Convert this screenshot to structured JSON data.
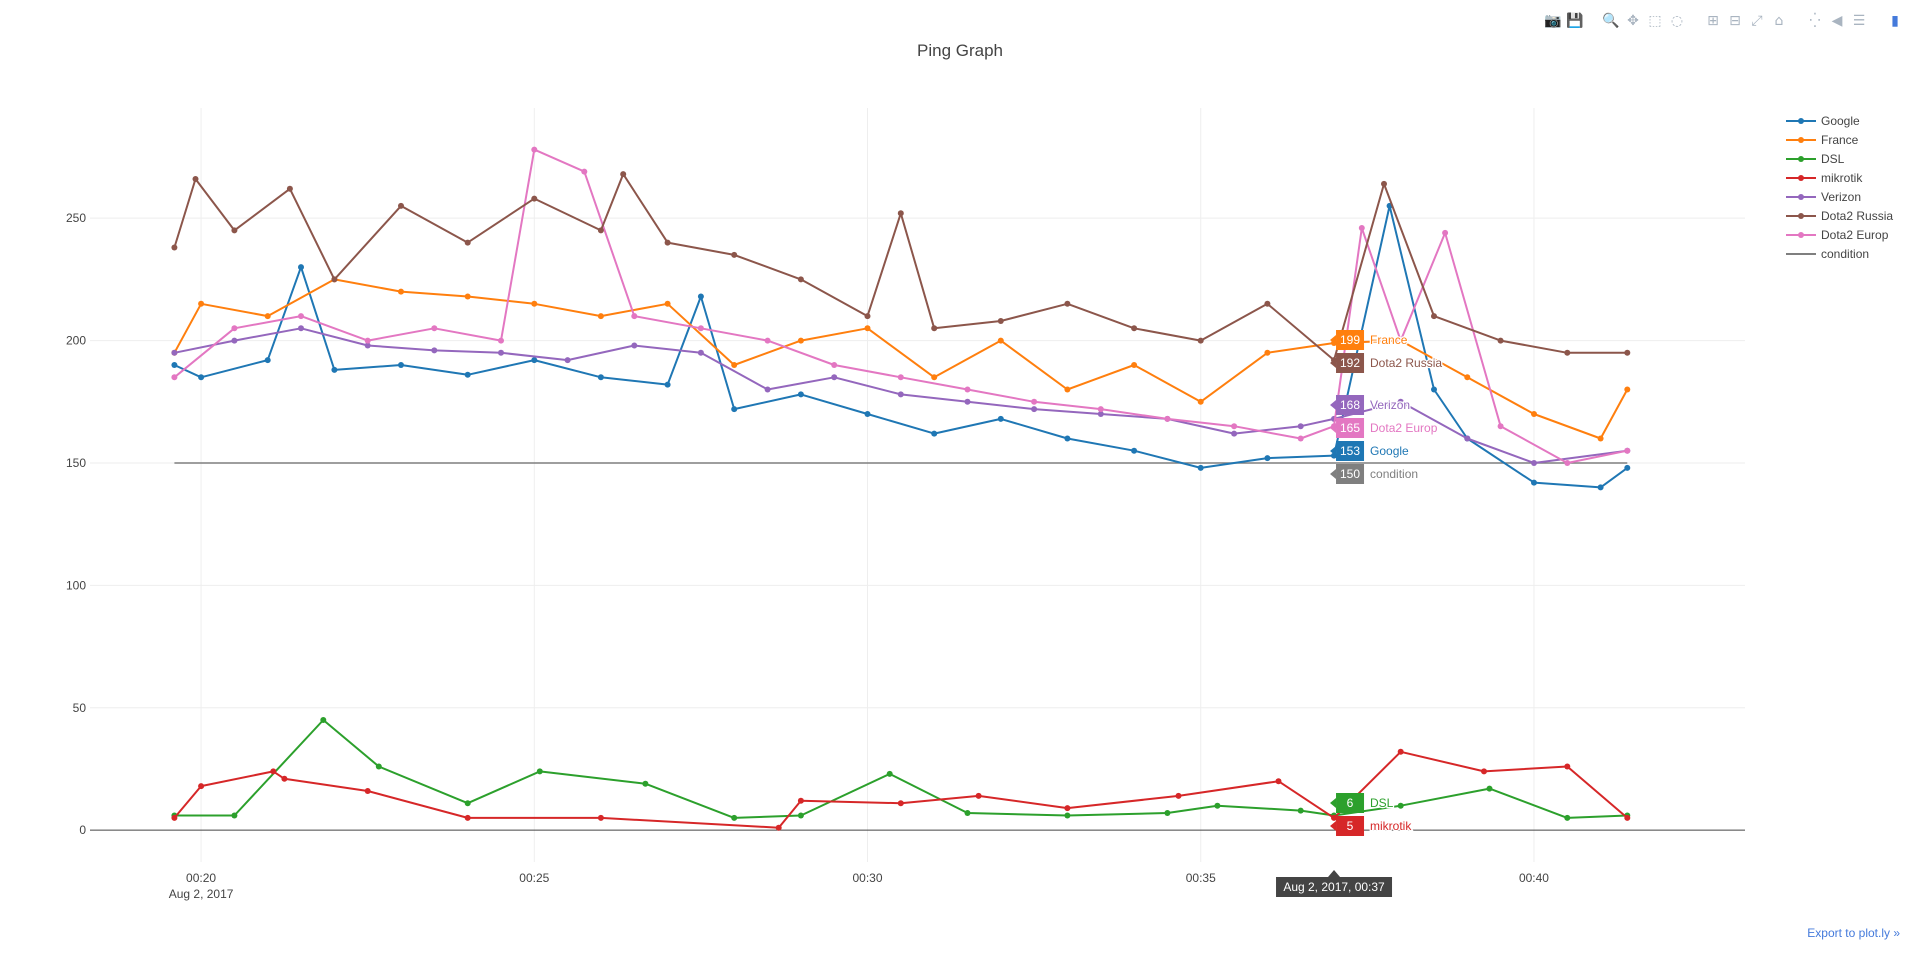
{
  "modebar": {
    "groups": [
      [
        {
          "name": "camera-icon",
          "glyph": "📷"
        },
        {
          "name": "save-icon",
          "glyph": "💾"
        }
      ],
      [
        {
          "name": "zoom-icon",
          "glyph": "🔍",
          "active": true
        },
        {
          "name": "pan-icon",
          "glyph": "✥"
        },
        {
          "name": "box-select-icon",
          "glyph": "⬚"
        },
        {
          "name": "lasso-select-icon",
          "glyph": "◌"
        }
      ],
      [
        {
          "name": "zoom-in-icon",
          "glyph": "⊞"
        },
        {
          "name": "zoom-out-icon",
          "glyph": "⊟"
        },
        {
          "name": "autoscale-icon",
          "glyph": "⤢"
        },
        {
          "name": "reset-axes-icon",
          "glyph": "⌂"
        }
      ],
      [
        {
          "name": "spike-lines-icon",
          "glyph": "⁛"
        },
        {
          "name": "hover-closest-icon",
          "glyph": "◀"
        },
        {
          "name": "hover-compare-icon",
          "glyph": "☰"
        }
      ],
      [
        {
          "name": "plotly-logo-icon",
          "glyph": "▮",
          "logo": true
        }
      ]
    ]
  },
  "export_link": "Export to plot.ly »",
  "chart_data": {
    "type": "line",
    "title": "Ping Graph",
    "xlabel": "",
    "ylabel": "",
    "x_range": [
      "2017-08-02T00:18:20",
      "2017-08-02T00:43:10"
    ],
    "x_ticks": [
      {
        "value": "2017-08-02T00:20",
        "label": "00:20",
        "sublabel": "Aug 2, 2017"
      },
      {
        "value": "2017-08-02T00:25",
        "label": "00:25"
      },
      {
        "value": "2017-08-02T00:30",
        "label": "00:30"
      },
      {
        "value": "2017-08-02T00:35",
        "label": "00:35"
      },
      {
        "value": "2017-08-02T00:40",
        "label": "00:40"
      }
    ],
    "ylim": [
      -13,
      295
    ],
    "y_ticks": [
      0,
      50,
      100,
      150,
      200,
      250
    ],
    "grid": true,
    "legend_position": "top-right",
    "series": [
      {
        "name": "Google",
        "color": "#1f77b4",
        "markers": true,
        "x": [
          "2017-08-02T00:19:36",
          "2017-08-02T00:20:00",
          "2017-08-02T00:21:00",
          "2017-08-02T00:21:30",
          "2017-08-02T00:22:00",
          "2017-08-02T00:23:00",
          "2017-08-02T00:24:00",
          "2017-08-02T00:25:00",
          "2017-08-02T00:26:00",
          "2017-08-02T00:27:00",
          "2017-08-02T00:27:30",
          "2017-08-02T00:28:00",
          "2017-08-02T00:29:00",
          "2017-08-02T00:30:00",
          "2017-08-02T00:31:00",
          "2017-08-02T00:32:00",
          "2017-08-02T00:33:00",
          "2017-08-02T00:34:00",
          "2017-08-02T00:35:00",
          "2017-08-02T00:36:00",
          "2017-08-02T00:37:00",
          "2017-08-02T00:37:50",
          "2017-08-02T00:38:30",
          "2017-08-02T00:39:00",
          "2017-08-02T00:40:00",
          "2017-08-02T00:41:00",
          "2017-08-02T00:41:24"
        ],
        "y": [
          190,
          185,
          192,
          230,
          188,
          190,
          186,
          192,
          185,
          182,
          218,
          172,
          178,
          170,
          162,
          168,
          160,
          155,
          148,
          152,
          153,
          255,
          180,
          160,
          142,
          140,
          148
        ]
      },
      {
        "name": "France",
        "color": "#ff7f0e",
        "markers": true,
        "x": [
          "2017-08-02T00:19:36",
          "2017-08-02T00:20:00",
          "2017-08-02T00:21:00",
          "2017-08-02T00:22:00",
          "2017-08-02T00:23:00",
          "2017-08-02T00:24:00",
          "2017-08-02T00:25:00",
          "2017-08-02T00:26:00",
          "2017-08-02T00:27:00",
          "2017-08-02T00:28:00",
          "2017-08-02T00:29:00",
          "2017-08-02T00:30:00",
          "2017-08-02T00:31:00",
          "2017-08-02T00:32:00",
          "2017-08-02T00:33:00",
          "2017-08-02T00:34:00",
          "2017-08-02T00:35:00",
          "2017-08-02T00:36:00",
          "2017-08-02T00:37:00",
          "2017-08-02T00:38:00",
          "2017-08-02T00:39:00",
          "2017-08-02T00:40:00",
          "2017-08-02T00:41:00",
          "2017-08-02T00:41:24"
        ],
        "y": [
          195,
          215,
          210,
          225,
          220,
          218,
          215,
          210,
          215,
          190,
          200,
          205,
          185,
          200,
          180,
          190,
          175,
          195,
          199,
          200,
          185,
          170,
          160,
          180
        ]
      },
      {
        "name": "DSL",
        "color": "#2ca02c",
        "markers": true,
        "x": [
          "2017-08-02T00:19:36",
          "2017-08-02T00:20:30",
          "2017-08-02T00:21:50",
          "2017-08-02T00:22:40",
          "2017-08-02T00:24:00",
          "2017-08-02T00:25:05",
          "2017-08-02T00:26:40",
          "2017-08-02T00:28:00",
          "2017-08-02T00:29:00",
          "2017-08-02T00:30:20",
          "2017-08-02T00:31:30",
          "2017-08-02T00:33:00",
          "2017-08-02T00:34:30",
          "2017-08-02T00:35:15",
          "2017-08-02T00:36:30",
          "2017-08-02T00:37:00",
          "2017-08-02T00:38:00",
          "2017-08-02T00:39:20",
          "2017-08-02T00:40:30",
          "2017-08-02T00:41:24"
        ],
        "y": [
          6,
          6,
          45,
          26,
          11,
          24,
          19,
          5,
          6,
          23,
          7,
          6,
          7,
          10,
          8,
          6,
          10,
          17,
          5,
          6
        ]
      },
      {
        "name": "mikrotik",
        "color": "#d62728",
        "markers": true,
        "x": [
          "2017-08-02T00:19:36",
          "2017-08-02T00:20:00",
          "2017-08-02T00:21:05",
          "2017-08-02T00:21:15",
          "2017-08-02T00:22:30",
          "2017-08-02T00:24:00",
          "2017-08-02T00:26:00",
          "2017-08-02T00:28:40",
          "2017-08-02T00:29:00",
          "2017-08-02T00:30:30",
          "2017-08-02T00:31:40",
          "2017-08-02T00:33:00",
          "2017-08-02T00:34:40",
          "2017-08-02T00:36:10",
          "2017-08-02T00:37:00",
          "2017-08-02T00:38:00",
          "2017-08-02T00:39:15",
          "2017-08-02T00:40:30",
          "2017-08-02T00:41:24"
        ],
        "y": [
          5,
          18,
          24,
          21,
          16,
          5,
          5,
          1,
          12,
          11,
          14,
          9,
          14,
          20,
          5,
          32,
          24,
          26,
          5
        ]
      },
      {
        "name": "Verizon",
        "color": "#9467bd",
        "markers": true,
        "x": [
          "2017-08-02T00:19:36",
          "2017-08-02T00:20:30",
          "2017-08-02T00:21:30",
          "2017-08-02T00:22:30",
          "2017-08-02T00:23:30",
          "2017-08-02T00:24:30",
          "2017-08-02T00:25:30",
          "2017-08-02T00:26:30",
          "2017-08-02T00:27:30",
          "2017-08-02T00:28:30",
          "2017-08-02T00:29:30",
          "2017-08-02T00:30:30",
          "2017-08-02T00:31:30",
          "2017-08-02T00:32:30",
          "2017-08-02T00:33:30",
          "2017-08-02T00:34:30",
          "2017-08-02T00:35:30",
          "2017-08-02T00:36:30",
          "2017-08-02T00:37:00",
          "2017-08-02T00:38:00",
          "2017-08-02T00:39:00",
          "2017-08-02T00:40:00",
          "2017-08-02T00:41:24"
        ],
        "y": [
          195,
          200,
          205,
          198,
          196,
          195,
          192,
          198,
          195,
          180,
          185,
          178,
          175,
          172,
          170,
          168,
          162,
          165,
          168,
          175,
          160,
          150,
          155
        ]
      },
      {
        "name": "Dota2 Russia",
        "color": "#8c564b",
        "markers": true,
        "x": [
          "2017-08-02T00:19:36",
          "2017-08-02T00:19:55",
          "2017-08-02T00:20:30",
          "2017-08-02T00:21:20",
          "2017-08-02T00:22:00",
          "2017-08-02T00:23:00",
          "2017-08-02T00:24:00",
          "2017-08-02T00:25:00",
          "2017-08-02T00:26:00",
          "2017-08-02T00:26:20",
          "2017-08-02T00:27:00",
          "2017-08-02T00:28:00",
          "2017-08-02T00:29:00",
          "2017-08-02T00:30:00",
          "2017-08-02T00:30:30",
          "2017-08-02T00:31:00",
          "2017-08-02T00:32:00",
          "2017-08-02T00:33:00",
          "2017-08-02T00:34:00",
          "2017-08-02T00:35:00",
          "2017-08-02T00:36:00",
          "2017-08-02T00:37:00",
          "2017-08-02T00:37:45",
          "2017-08-02T00:38:30",
          "2017-08-02T00:39:30",
          "2017-08-02T00:40:30",
          "2017-08-02T00:41:24"
        ],
        "y": [
          238,
          266,
          245,
          262,
          225,
          255,
          240,
          258,
          245,
          268,
          240,
          235,
          225,
          210,
          252,
          205,
          208,
          215,
          205,
          200,
          215,
          192,
          264,
          210,
          200,
          195,
          195
        ]
      },
      {
        "name": "Dota2 Europ",
        "color": "#e377c2",
        "markers": true,
        "x": [
          "2017-08-02T00:19:36",
          "2017-08-02T00:20:30",
          "2017-08-02T00:21:30",
          "2017-08-02T00:22:30",
          "2017-08-02T00:23:30",
          "2017-08-02T00:24:30",
          "2017-08-02T00:25:00",
          "2017-08-02T00:25:45",
          "2017-08-02T00:26:30",
          "2017-08-02T00:27:30",
          "2017-08-02T00:28:30",
          "2017-08-02T00:29:30",
          "2017-08-02T00:30:30",
          "2017-08-02T00:31:30",
          "2017-08-02T00:32:30",
          "2017-08-02T00:33:30",
          "2017-08-02T00:34:30",
          "2017-08-02T00:35:30",
          "2017-08-02T00:36:30",
          "2017-08-02T00:37:00",
          "2017-08-02T00:37:25",
          "2017-08-02T00:38:00",
          "2017-08-02T00:38:40",
          "2017-08-02T00:39:30",
          "2017-08-02T00:40:30",
          "2017-08-02T00:41:24"
        ],
        "y": [
          185,
          205,
          210,
          200,
          205,
          200,
          278,
          269,
          210,
          205,
          200,
          190,
          185,
          180,
          175,
          172,
          168,
          165,
          160,
          165,
          246,
          200,
          244,
          165,
          150,
          155
        ]
      },
      {
        "name": "condition",
        "color": "#7f7f7f",
        "markers": false,
        "x": [
          "2017-08-02T00:19:36",
          "2017-08-02T00:41:24"
        ],
        "y": [
          150,
          150
        ]
      }
    ],
    "hover": {
      "x_label": "Aug 2, 2017, 00:37",
      "x": "2017-08-02T00:37:00",
      "items": [
        {
          "value": "199",
          "name": "France",
          "color": "#ff7f0e",
          "y": 199
        },
        {
          "value": "192",
          "name": "Dota2 Russia",
          "color": "#8c564b",
          "y": 192
        },
        {
          "value": "168",
          "name": "Verizon",
          "color": "#9467bd",
          "y": 168
        },
        {
          "value": "165",
          "name": "Dota2 Europ",
          "color": "#e377c2",
          "y": 165
        },
        {
          "value": "153",
          "name": "Google",
          "color": "#1f77b4",
          "y": 153
        },
        {
          "value": "150",
          "name": "condition",
          "color": "#7f7f7f",
          "y": 150
        },
        {
          "value": "6",
          "name": "DSL",
          "color": "#2ca02c",
          "y": 6
        },
        {
          "value": "5",
          "name": "mikrotik",
          "color": "#d62728",
          "y": 5
        }
      ]
    }
  }
}
